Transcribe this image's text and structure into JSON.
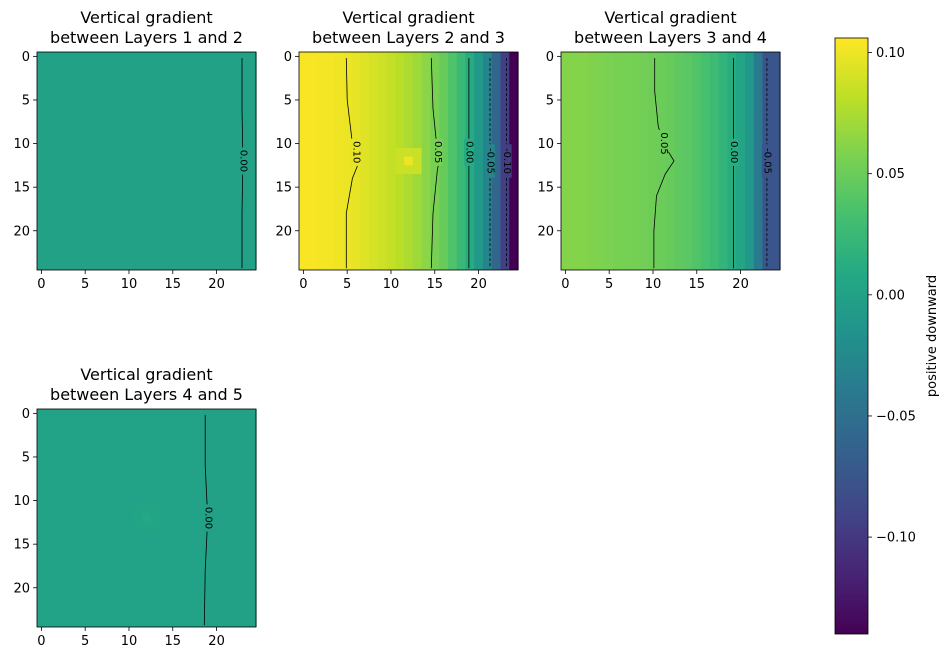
{
  "chart_data": [
    {
      "type": "heatmap",
      "title_lines": [
        "Vertical gradient",
        "between Layers 1 and 2"
      ],
      "grid_shape": [
        25,
        25
      ],
      "xlim": [
        -0.5,
        24.5
      ],
      "ylim": [
        24.5,
        -0.5
      ],
      "x_ticks": [
        0,
        5,
        10,
        15,
        20
      ],
      "y_ticks": [
        0,
        5,
        10,
        15,
        20
      ],
      "column_values": [
        0,
        0,
        0,
        0,
        0,
        0,
        0,
        0,
        0,
        0,
        0,
        0,
        0,
        0,
        0,
        0,
        0,
        0,
        0,
        0,
        0,
        0,
        0,
        0,
        0
      ],
      "contours": [
        {
          "label": "0.00",
          "points": [
            [
              22.9,
              0.2
            ],
            [
              22.9,
              6
            ],
            [
              23.0,
              12
            ],
            [
              22.9,
              18
            ],
            [
              22.9,
              24.3
            ]
          ],
          "label_y": 12
        }
      ]
    },
    {
      "type": "heatmap",
      "title_lines": [
        "Vertical gradient",
        "between Layers 2 and 3"
      ],
      "grid_shape": [
        25,
        25
      ],
      "xlim": [
        -0.5,
        24.5
      ],
      "ylim": [
        24.5,
        -0.5
      ],
      "x_ticks": [
        0,
        5,
        10,
        15,
        20
      ],
      "y_ticks": [
        0,
        5,
        10,
        15,
        20
      ],
      "column_values": [
        0.104,
        0.104,
        0.103,
        0.103,
        0.101,
        0.099,
        0.097,
        0.094,
        0.091,
        0.088,
        0.084,
        0.08,
        0.075,
        0.07,
        0.063,
        0.056,
        0.048,
        0.037,
        0.025,
        0.011,
        -0.008,
        -0.03,
        -0.058,
        -0.095,
        -0.14
      ],
      "hotspot": {
        "row": 12,
        "col": 12,
        "value": 0.1
      },
      "contours": [
        {
          "label": "0.10",
          "points": [
            [
              4.9,
              0.2
            ],
            [
              5,
              5
            ],
            [
              5.6,
              10
            ],
            [
              6.4,
              12
            ],
            [
              5.6,
              14
            ],
            [
              4.9,
              18
            ],
            [
              4.9,
              24.3
            ]
          ],
          "label_y": 11
        },
        {
          "label": "0.05",
          "points": [
            [
              14.6,
              0.2
            ],
            [
              14.8,
              6
            ],
            [
              15.3,
              11
            ],
            [
              15.5,
              12
            ],
            [
              15.3,
              13
            ],
            [
              14.8,
              18
            ],
            [
              14.6,
              24.3
            ]
          ],
          "label_y": 11
        },
        {
          "label": "0.00",
          "points": [
            [
              18.9,
              0.2
            ],
            [
              18.9,
              12
            ],
            [
              18.9,
              24.3
            ]
          ],
          "label_y": 11
        },
        {
          "label": "-0.05",
          "points": [
            [
              21.3,
              0.2
            ],
            [
              21.3,
              12
            ],
            [
              21.3,
              24.3
            ]
          ],
          "label_y": 12
        },
        {
          "label": "-0.10",
          "points": [
            [
              23.2,
              0.2
            ],
            [
              23.2,
              12
            ],
            [
              23.2,
              24.3
            ]
          ],
          "label_y": 12
        }
      ]
    },
    {
      "type": "heatmap",
      "title_lines": [
        "Vertical gradient",
        "between Layers 3 and 4"
      ],
      "grid_shape": [
        25,
        25
      ],
      "xlim": [
        -0.5,
        24.5
      ],
      "ylim": [
        24.5,
        -0.5
      ],
      "x_ticks": [
        0,
        5,
        10,
        15,
        20
      ],
      "y_ticks": [
        0,
        5,
        10,
        15,
        20
      ],
      "column_values": [
        0.06,
        0.06,
        0.06,
        0.059,
        0.058,
        0.057,
        0.056,
        0.055,
        0.054,
        0.053,
        0.052,
        0.05,
        0.048,
        0.045,
        0.042,
        0.038,
        0.033,
        0.027,
        0.02,
        0.012,
        0.003,
        -0.01,
        -0.04,
        -0.075,
        -0.075
      ],
      "contours": [
        {
          "label": "0.05",
          "points": [
            [
              10.2,
              0.2
            ],
            [
              10.2,
              4
            ],
            [
              10.6,
              8
            ],
            [
              11.2,
              10
            ],
            [
              12.4,
              12
            ],
            [
              11.4,
              13.5
            ],
            [
              10.4,
              16
            ],
            [
              10.1,
              20
            ],
            [
              10.1,
              24.3
            ]
          ],
          "label_y": 10
        },
        {
          "label": "0.00",
          "points": [
            [
              19.2,
              0.2
            ],
            [
              19.2,
              12
            ],
            [
              19.2,
              24.3
            ]
          ],
          "label_y": 11
        },
        {
          "label": "-0.05",
          "points": [
            [
              23,
              0.2
            ],
            [
              23,
              12
            ],
            [
              23,
              24.3
            ]
          ],
          "label_y": 12
        }
      ]
    },
    {
      "type": "heatmap",
      "title_lines": [
        "Vertical gradient",
        "between Layers 4 and 5"
      ],
      "grid_shape": [
        25,
        25
      ],
      "xlim": [
        -0.5,
        24.5
      ],
      "ylim": [
        24.5,
        -0.5
      ],
      "x_ticks": [
        0,
        5,
        10,
        15,
        20
      ],
      "y_ticks": [
        0,
        5,
        10,
        15,
        20
      ],
      "column_values": [
        0.001,
        0.001,
        0.001,
        0.001,
        0.001,
        0.001,
        0.001,
        0.001,
        0.001,
        0.001,
        0.001,
        0.001,
        0.001,
        0.001,
        0.001,
        0.001,
        0.001,
        0.001,
        0.001,
        0.0,
        0.0,
        0.0,
        0.0,
        0.0,
        0.0
      ],
      "hotspot": {
        "row": 12,
        "col": 12,
        "value": 0.008
      },
      "contours": [
        {
          "label": "0.00",
          "points": [
            [
              18.7,
              0.2
            ],
            [
              18.7,
              6
            ],
            [
              18.9,
              10
            ],
            [
              19.0,
              12
            ],
            [
              18.9,
              14
            ],
            [
              18.7,
              18
            ],
            [
              18.6,
              24.3
            ]
          ],
          "label_y": 12
        }
      ]
    }
  ],
  "colorbar": {
    "colormap": "viridis",
    "vmin": -0.14,
    "vmax": 0.106,
    "ticks": [
      0.1,
      0.05,
      0.0,
      -0.05,
      -0.1
    ],
    "tick_labels": [
      "0.10",
      "0.05",
      "0.00",
      "−0.05",
      "−0.10"
    ],
    "label": "positive downward"
  }
}
